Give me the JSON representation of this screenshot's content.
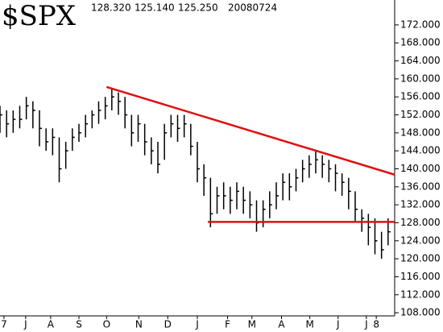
{
  "chart_data": {
    "type": "hlc",
    "title": "$SPX",
    "header": [
      "128.320",
      "125.140",
      "125.250",
      "20080724"
    ],
    "x": [
      0,
      1,
      2,
      3,
      4,
      5,
      6,
      7,
      8,
      9,
      10,
      11,
      12,
      13,
      14,
      15,
      16,
      17,
      18,
      19,
      20,
      21,
      22,
      23,
      24,
      25,
      26,
      27,
      28,
      29,
      30,
      31,
      32,
      33,
      34,
      35,
      36,
      37,
      38,
      39,
      40,
      41,
      42,
      43,
      44,
      45,
      46,
      47,
      48,
      49,
      50,
      51,
      52,
      53,
      54,
      55,
      56,
      57,
      58,
      59
    ],
    "high": [
      154,
      153,
      153,
      154,
      156,
      155,
      153,
      149,
      149,
      147,
      146,
      149,
      150,
      152,
      153,
      155,
      156,
      158,
      157,
      156,
      152,
      152,
      150,
      147,
      146,
      150,
      152,
      152,
      152,
      150,
      146,
      141,
      138,
      136,
      137,
      136,
      137,
      136,
      135,
      133,
      133,
      135,
      137,
      139,
      139,
      140,
      142,
      143,
      144,
      143,
      142,
      141,
      139,
      138,
      135,
      131,
      130,
      129,
      126,
      129
    ],
    "low": [
      148,
      147,
      148,
      149,
      151,
      149,
      145,
      144,
      143,
      137,
      140,
      144,
      146,
      147,
      149,
      150,
      151,
      153,
      152,
      149,
      145,
      146,
      143,
      141,
      139,
      142,
      147,
      146,
      147,
      143,
      137,
      134,
      127,
      130,
      131,
      130,
      131,
      130,
      129,
      126,
      127,
      129,
      131,
      133,
      133,
      135,
      137,
      138,
      139,
      138,
      137,
      135,
      134,
      131,
      128,
      126,
      123,
      121,
      120,
      123
    ],
    "close": [
      152,
      150,
      151,
      151,
      154,
      153,
      149,
      146,
      147,
      140,
      144,
      147,
      148,
      150,
      152,
      153,
      154,
      156,
      155,
      152,
      148,
      150,
      146,
      144,
      141,
      148,
      150,
      149,
      150,
      145,
      140,
      138,
      130,
      134,
      134,
      133,
      135,
      133,
      132,
      128,
      131,
      132,
      134,
      137,
      136,
      138,
      140,
      141,
      142,
      141,
      140,
      139,
      137,
      135,
      131,
      129,
      127,
      124,
      122,
      126
    ],
    "color": "#000000",
    "trendlines": [
      {
        "x": [
          16.2,
          60
        ],
        "y": [
          158.2,
          138.7
        ],
        "color": "#e01010"
      },
      {
        "x": [
          31.6,
          60
        ],
        "y": [
          128.2,
          128.2
        ],
        "color": "#e01010"
      }
    ],
    "xlim": [
      0,
      60
    ],
    "xticks": [
      {
        "value": 0.6,
        "label": "7"
      },
      {
        "value": 3.9,
        "label": "J"
      },
      {
        "value": 7.7,
        "label": "A"
      },
      {
        "value": 12,
        "label": "S"
      },
      {
        "value": 16.2,
        "label": "O"
      },
      {
        "value": 21.1,
        "label": "N"
      },
      {
        "value": 25.5,
        "label": "D"
      },
      {
        "value": 30,
        "label": "J"
      },
      {
        "value": 34.6,
        "label": "F"
      },
      {
        "value": 38.3,
        "label": "M"
      },
      {
        "value": 42.8,
        "label": "A"
      },
      {
        "value": 47.1,
        "label": "M"
      },
      {
        "value": 51.4,
        "label": "J"
      },
      {
        "value": 55.7,
        "label": "J"
      },
      {
        "value": 57.2,
        "label": "8"
      }
    ],
    "ylim": [
      107.3,
      177
    ],
    "yticks": [
      {
        "value": 108,
        "label": "108.000"
      },
      {
        "value": 112,
        "label": "112.000"
      },
      {
        "value": 116,
        "label": "116.000"
      },
      {
        "value": 120,
        "label": "120.000"
      },
      {
        "value": 124,
        "label": "124.000"
      },
      {
        "value": 128,
        "label": "128.000"
      },
      {
        "value": 132,
        "label": "132.000"
      },
      {
        "value": 136,
        "label": "136.000"
      },
      {
        "value": 140,
        "label": "140.000"
      },
      {
        "value": 144,
        "label": "144.000"
      },
      {
        "value": 148,
        "label": "148.000"
      },
      {
        "value": 152,
        "label": "152.000"
      },
      {
        "value": 156,
        "label": "156.000"
      },
      {
        "value": 160,
        "label": "160.000"
      },
      {
        "value": 164,
        "label": "164.000"
      },
      {
        "value": 168,
        "label": "168.000"
      },
      {
        "value": 172,
        "label": "172.000"
      }
    ],
    "grid": false
  }
}
